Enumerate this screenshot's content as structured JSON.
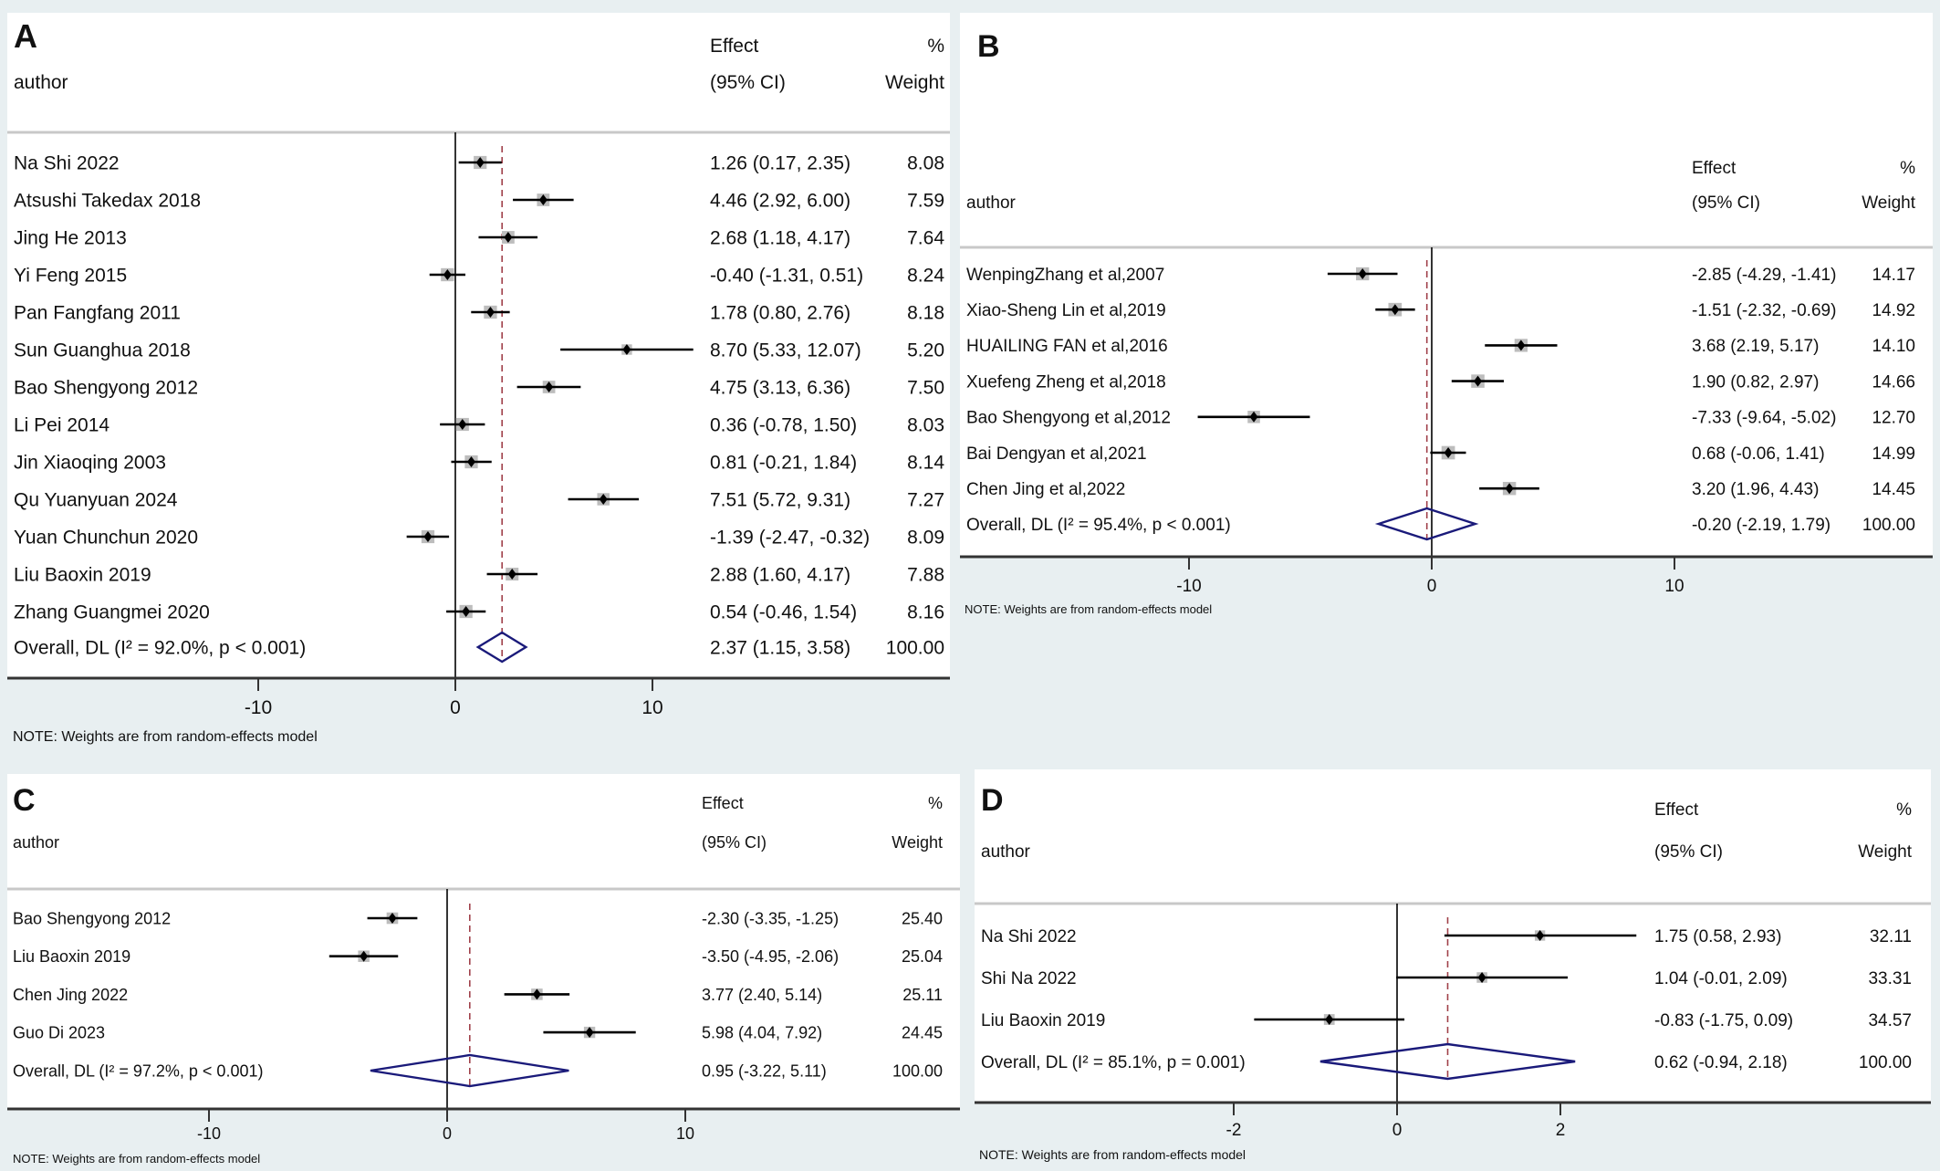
{
  "colors": {
    "background": "#e8eff1",
    "panel": "#ffffff",
    "ci_line": "#000000",
    "weight_box": "#bdbdbd",
    "overall_line": "#a0404a",
    "diamond": "#1a1a7a"
  },
  "chart_data": [
    {
      "type": "forest",
      "panel_label": "A",
      "headers": {
        "author": "author",
        "effect_top": "Effect",
        "effect_bottom": "(95% CI)",
        "weight_top": "%",
        "weight_bottom": "Weight"
      },
      "studies": [
        {
          "author": "Na Shi 2022",
          "effect": 1.26,
          "lo": 0.17,
          "hi": 2.35,
          "ci_text": "1.26 (0.17, 2.35)",
          "weight": "8.08"
        },
        {
          "author": "Atsushi Takedax 2018",
          "effect": 4.46,
          "lo": 2.92,
          "hi": 6.0,
          "ci_text": "4.46 (2.92, 6.00)",
          "weight": "7.59"
        },
        {
          "author": "Jing He 2013",
          "effect": 2.68,
          "lo": 1.18,
          "hi": 4.17,
          "ci_text": "2.68 (1.18, 4.17)",
          "weight": "7.64"
        },
        {
          "author": "Yi Feng 2015",
          "effect": -0.4,
          "lo": -1.31,
          "hi": 0.51,
          "ci_text": "-0.40 (-1.31, 0.51)",
          "weight": "8.24"
        },
        {
          "author": "Pan Fangfang 2011",
          "effect": 1.78,
          "lo": 0.8,
          "hi": 2.76,
          "ci_text": "1.78 (0.80, 2.76)",
          "weight": "8.18"
        },
        {
          "author": "Sun Guanghua 2018",
          "effect": 8.7,
          "lo": 5.33,
          "hi": 12.07,
          "ci_text": "8.70 (5.33, 12.07)",
          "weight": "5.20"
        },
        {
          "author": "Bao Shengyong 2012",
          "effect": 4.75,
          "lo": 3.13,
          "hi": 6.36,
          "ci_text": "4.75 (3.13, 6.36)",
          "weight": "7.50"
        },
        {
          "author": "Li Pei 2014",
          "effect": 0.36,
          "lo": -0.78,
          "hi": 1.5,
          "ci_text": "0.36 (-0.78, 1.50)",
          "weight": "8.03"
        },
        {
          "author": "Jin Xiaoqing 2003",
          "effect": 0.81,
          "lo": -0.21,
          "hi": 1.84,
          "ci_text": "0.81 (-0.21, 1.84)",
          "weight": "8.14"
        },
        {
          "author": "Qu Yuanyuan 2024",
          "effect": 7.51,
          "lo": 5.72,
          "hi": 9.31,
          "ci_text": "7.51 (5.72, 9.31)",
          "weight": "7.27"
        },
        {
          "author": "Yuan Chunchun 2020",
          "effect": -1.39,
          "lo": -2.47,
          "hi": -0.32,
          "ci_text": "-1.39 (-2.47, -0.32)",
          "weight": "8.09"
        },
        {
          "author": "Liu Baoxin 2019",
          "effect": 2.88,
          "lo": 1.6,
          "hi": 4.17,
          "ci_text": "2.88 (1.60, 4.17)",
          "weight": "7.88"
        },
        {
          "author": "Zhang Guangmei 2020",
          "effect": 0.54,
          "lo": -0.46,
          "hi": 1.54,
          "ci_text": "0.54 (-0.46, 1.54)",
          "weight": "8.16"
        }
      ],
      "overall": {
        "label": "Overall, DL (I² = 92.0%, p < 0.001)",
        "effect": 2.37,
        "lo": 1.15,
        "hi": 3.58,
        "ci_text": "2.37 (1.15, 3.58)",
        "weight": "100.00"
      },
      "x_ticks": [
        -10,
        0,
        10
      ],
      "note": "NOTE: Weights are from random-effects model"
    },
    {
      "type": "forest",
      "panel_label": "B",
      "headers": {
        "author": "author",
        "effect_top": "Effect",
        "effect_bottom": "(95% CI)",
        "weight_top": "%",
        "weight_bottom": "Weight"
      },
      "studies": [
        {
          "author": "WenpingZhang et al,2007",
          "effect": -2.85,
          "lo": -4.29,
          "hi": -1.41,
          "ci_text": "-2.85 (-4.29, -1.41)",
          "weight": "14.17"
        },
        {
          "author": "Xiao-Sheng Lin et al,2019",
          "effect": -1.51,
          "lo": -2.32,
          "hi": -0.69,
          "ci_text": "-1.51 (-2.32, -0.69)",
          "weight": "14.92"
        },
        {
          "author": "HUAILING FAN et al,2016",
          "effect": 3.68,
          "lo": 2.19,
          "hi": 5.17,
          "ci_text": "3.68 (2.19, 5.17)",
          "weight": "14.10"
        },
        {
          "author": "Xuefeng Zheng et al,2018",
          "effect": 1.9,
          "lo": 0.82,
          "hi": 2.97,
          "ci_text": "1.90 (0.82, 2.97)",
          "weight": "14.66"
        },
        {
          "author": "Bao Shengyong et al,2012",
          "effect": -7.33,
          "lo": -9.64,
          "hi": -5.02,
          "ci_text": "-7.33 (-9.64, -5.02)",
          "weight": "12.70"
        },
        {
          "author": "Bai Dengyan et al,2021",
          "effect": 0.68,
          "lo": -0.06,
          "hi": 1.41,
          "ci_text": "0.68 (-0.06, 1.41)",
          "weight": "14.99"
        },
        {
          "author": "Chen Jing et al,2022",
          "effect": 3.2,
          "lo": 1.96,
          "hi": 4.43,
          "ci_text": "3.20 (1.96, 4.43)",
          "weight": "14.45"
        }
      ],
      "overall": {
        "label": "Overall, DL (I² = 95.4%, p < 0.001)",
        "effect": -0.2,
        "lo": -2.19,
        "hi": 1.79,
        "ci_text": "-0.20 (-2.19, 1.79)",
        "weight": "100.00"
      },
      "x_ticks": [
        -10,
        0,
        10
      ],
      "note": "NOTE: Weights are from random-effects model"
    },
    {
      "type": "forest",
      "panel_label": "C",
      "headers": {
        "author": "author",
        "effect_top": "Effect",
        "effect_bottom": "(95% CI)",
        "weight_top": "%",
        "weight_bottom": "Weight"
      },
      "studies": [
        {
          "author": "Bao Shengyong 2012",
          "effect": -2.3,
          "lo": -3.35,
          "hi": -1.25,
          "ci_text": "-2.30 (-3.35, -1.25)",
          "weight": "25.40"
        },
        {
          "author": "Liu Baoxin 2019",
          "effect": -3.5,
          "lo": -4.95,
          "hi": -2.06,
          "ci_text": "-3.50 (-4.95, -2.06)",
          "weight": "25.04"
        },
        {
          "author": "Chen Jing 2022",
          "effect": 3.77,
          "lo": 2.4,
          "hi": 5.14,
          "ci_text": "3.77 (2.40, 5.14)",
          "weight": "25.11"
        },
        {
          "author": "Guo Di 2023",
          "effect": 5.98,
          "lo": 4.04,
          "hi": 7.92,
          "ci_text": "5.98 (4.04, 7.92)",
          "weight": "24.45"
        }
      ],
      "overall": {
        "label": "Overall, DL (I² = 97.2%, p < 0.001)",
        "effect": 0.95,
        "lo": -3.22,
        "hi": 5.11,
        "ci_text": "0.95 (-3.22, 5.11)",
        "weight": "100.00"
      },
      "x_ticks": [
        -10,
        0,
        10
      ],
      "note": "NOTE: Weights are from random-effects model"
    },
    {
      "type": "forest",
      "panel_label": "D",
      "headers": {
        "author": "author",
        "effect_top": "Effect",
        "effect_bottom": "(95% CI)",
        "weight_top": "%",
        "weight_bottom": "Weight"
      },
      "studies": [
        {
          "author": "Na Shi 2022",
          "effect": 1.75,
          "lo": 0.58,
          "hi": 2.93,
          "ci_text": "1.75 (0.58, 2.93)",
          "weight": "32.11"
        },
        {
          "author": "Shi Na 2022",
          "effect": 1.04,
          "lo": -0.01,
          "hi": 2.09,
          "ci_text": "1.04 (-0.01, 2.09)",
          "weight": "33.31"
        },
        {
          "author": "Liu Baoxin 2019",
          "effect": -0.83,
          "lo": -1.75,
          "hi": 0.09,
          "ci_text": "-0.83 (-1.75, 0.09)",
          "weight": "34.57"
        }
      ],
      "overall": {
        "label": "Overall, DL (I² = 85.1%, p = 0.001)",
        "effect": 0.62,
        "lo": -0.94,
        "hi": 2.18,
        "ci_text": "0.62 (-0.94, 2.18)",
        "weight": "100.00"
      },
      "x_ticks": [
        -2,
        0,
        2
      ],
      "note": "NOTE: Weights are from random-effects model"
    }
  ]
}
